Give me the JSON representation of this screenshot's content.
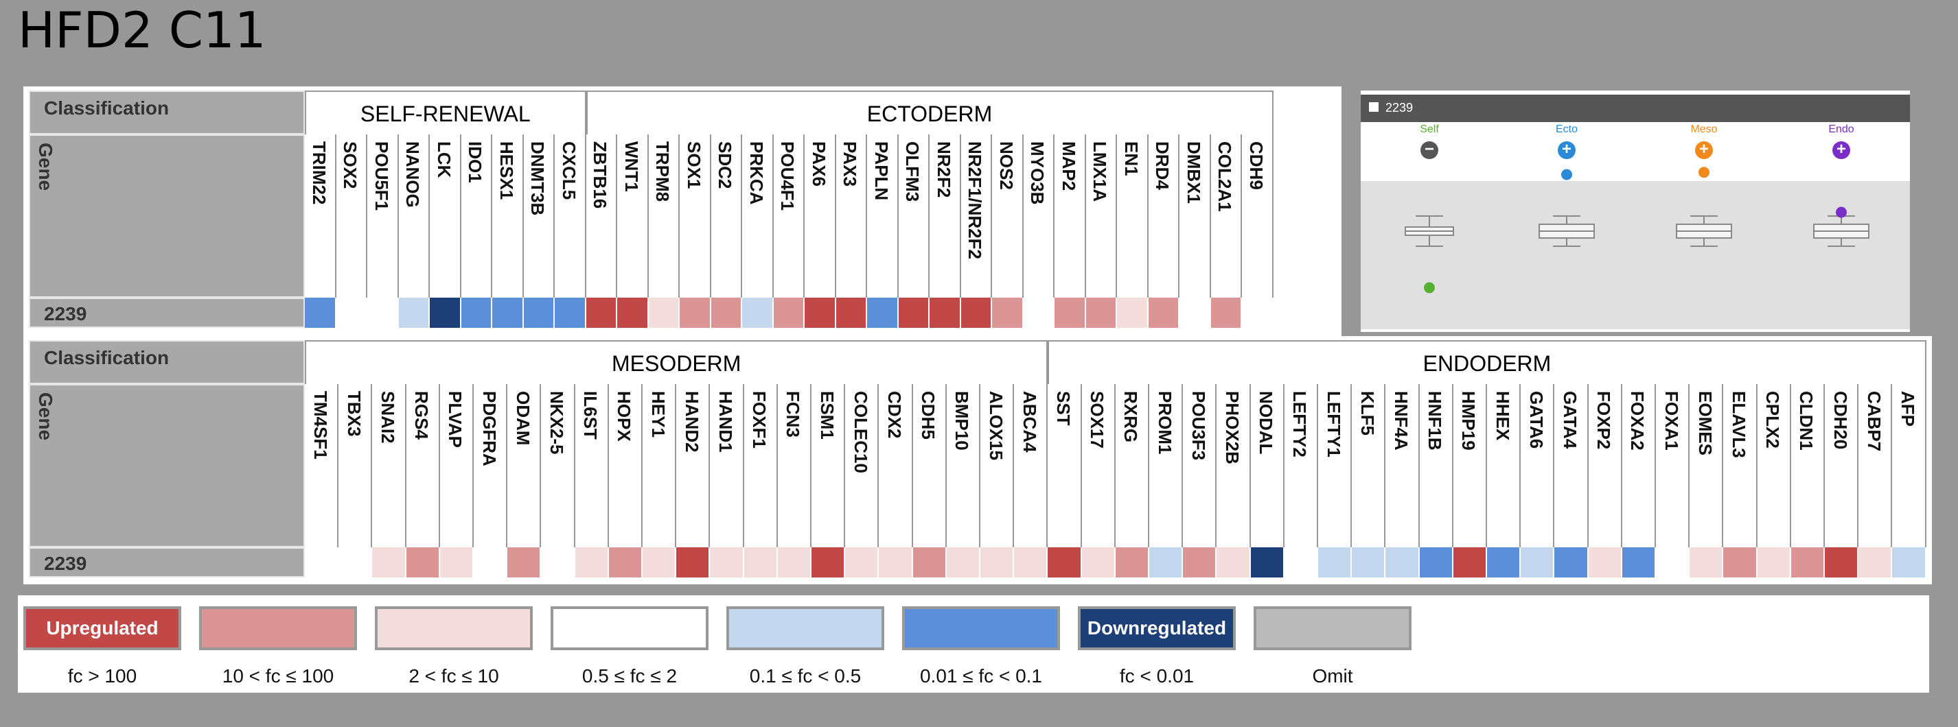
{
  "title": "HFD2 C11",
  "labels": {
    "classification": "Classification",
    "gene": "Gene",
    "sample": "2239"
  },
  "colors": {
    "up": "#c24848",
    "mid_up": "#da9594",
    "low_up": "#f3dcdc",
    "none": "#ffffff",
    "low_down": "#c3d7ef",
    "mid_down": "#5b8fd9",
    "down": "#1d3f78",
    "omit": "#bbbbbb"
  },
  "chart_data": [
    {
      "type": "heatmap",
      "sections": [
        {
          "name": "SELF-RENEWAL",
          "genes": [
            "TRIM22",
            "SOX2",
            "POU5F1",
            "NANOG",
            "LCK",
            "IDO1",
            "HESX1",
            "DNMT3B",
            "CXCL5"
          ],
          "values": [
            "mid_down",
            "none",
            "none",
            "low_down",
            "down",
            "mid_down",
            "mid_down",
            "mid_down",
            "mid_down"
          ]
        },
        {
          "name": "ECTODERM",
          "genes": [
            "ZBTB16",
            "WNT1",
            "TRPM8",
            "SOX1",
            "SDC2",
            "PRKCA",
            "POU4F1",
            "PAX6",
            "PAX3",
            "PAPLN",
            "OLFM3",
            "NR2F2",
            "NR2F1/NR2F2",
            "NOS2",
            "MYO3B",
            "MAP2",
            "LMX1A",
            "EN1",
            "DRD4",
            "DMBX1",
            "COL2A1",
            "CDH9"
          ],
          "values": [
            "up",
            "up",
            "low_up",
            "mid_up",
            "mid_up",
            "low_down",
            "mid_up",
            "up",
            "up",
            "mid_down",
            "up",
            "up",
            "up",
            "mid_up",
            "none",
            "mid_up",
            "mid_up",
            "low_up",
            "mid_up",
            "none",
            "mid_up",
            "none"
          ]
        }
      ]
    },
    {
      "type": "heatmap",
      "sections": [
        {
          "name": "MESODERM",
          "genes": [
            "TM4SF1",
            "TBX3",
            "SNAI2",
            "RGS4",
            "PLVAP",
            "PDGFRA",
            "ODAM",
            "NKX2-5",
            "IL6ST",
            "HOPX",
            "HEY1",
            "HAND2",
            "HAND1",
            "FOXF1",
            "FCN3",
            "ESM1",
            "COLEC10",
            "CDX2",
            "CDH5",
            "BMP10",
            "ALOX15",
            "ABCA4"
          ],
          "values": [
            "none",
            "none",
            "low_up",
            "mid_up",
            "low_up",
            "none",
            "mid_up",
            "none",
            "low_up",
            "mid_up",
            "low_up",
            "up",
            "low_up",
            "low_up",
            "low_up",
            "up",
            "low_up",
            "low_up",
            "mid_up",
            "low_up",
            "low_up",
            "low_up"
          ]
        },
        {
          "name": "ENDODERM",
          "genes": [
            "SST",
            "SOX17",
            "RXRG",
            "PROM1",
            "POU3F3",
            "PHOX2B",
            "NODAL",
            "LEFTY2",
            "LEFTY1",
            "KLF5",
            "HNF4A",
            "HNF1B",
            "HMP19",
            "HHEX",
            "GATA6",
            "GATA4",
            "FOXP2",
            "FOXA2",
            "FOXA1",
            "EOMES",
            "ELAVL3",
            "CPLX2",
            "CLDN1",
            "CDH20",
            "CABP7",
            "AFP"
          ],
          "values": [
            "up",
            "low_up",
            "mid_up",
            "low_down",
            "mid_up",
            "low_up",
            "down",
            "none",
            "low_down",
            "low_down",
            "low_down",
            "mid_down",
            "up",
            "mid_down",
            "low_down",
            "mid_down",
            "low_up",
            "mid_down",
            "none",
            "low_up",
            "mid_up",
            "low_up",
            "mid_up",
            "up",
            "low_up",
            "low_down"
          ]
        }
      ]
    },
    {
      "type": "scatter",
      "sample": "2239",
      "groups": [
        {
          "name": "Self",
          "color": "#55b030",
          "icon": "minus",
          "icon_color": "#555555"
        },
        {
          "name": "Ecto",
          "color": "#2a8ad8",
          "icon": "plus",
          "icon_color": "#2a8ad8"
        },
        {
          "name": "Meso",
          "color": "#f08a1e",
          "icon": "plus",
          "icon_color": "#f08a1e"
        },
        {
          "name": "Endo",
          "color": "#7a2ec8",
          "icon": "plus",
          "icon_color": "#7a2ec8"
        }
      ],
      "points": [
        {
          "group": "Self",
          "level": -0.75
        },
        {
          "group": "Ecto",
          "level": 0.75
        },
        {
          "group": "Meso",
          "level": 0.78
        },
        {
          "group": "Endo",
          "level": 0.25
        }
      ]
    }
  ],
  "legend": [
    {
      "key": "up",
      "label": "Upregulated",
      "caption": "fc > 100"
    },
    {
      "key": "mid_up",
      "label": "",
      "caption": "10 < fc ≤ 100"
    },
    {
      "key": "low_up",
      "label": "",
      "caption": "2 < fc ≤ 10"
    },
    {
      "key": "none",
      "label": "",
      "caption": "0.5 ≤ fc ≤ 2"
    },
    {
      "key": "low_down",
      "label": "",
      "caption": "0.1 ≤ fc < 0.5"
    },
    {
      "key": "mid_down",
      "label": "",
      "caption": "0.01 ≤ fc < 0.1"
    },
    {
      "key": "down",
      "label": "Downregulated",
      "caption": "fc < 0.01"
    },
    {
      "key": "omit",
      "label": "",
      "caption": "Omit"
    }
  ]
}
